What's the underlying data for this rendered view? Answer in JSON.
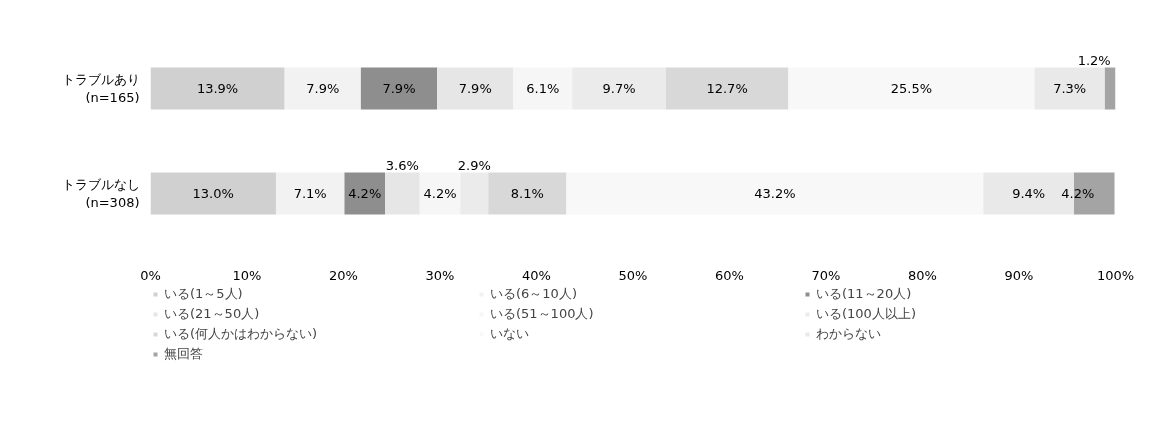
{
  "chart_data": {
    "type": "bar",
    "orientation": "horizontal",
    "stacked": true,
    "grid": false,
    "legend": "bottom",
    "categories": [
      "トラブルあり\n(n=165)",
      "トラブルなし\n(n=308)"
    ],
    "xlim": [
      0,
      100
    ],
    "xticks": [
      {
        "value": 0,
        "label": "0%"
      },
      {
        "value": 10,
        "label": "10%"
      },
      {
        "value": 20,
        "label": "20%"
      },
      {
        "value": 30,
        "label": "30%"
      },
      {
        "value": 40,
        "label": "40%"
      },
      {
        "value": 50,
        "label": "50%"
      },
      {
        "value": 60,
        "label": "60%"
      },
      {
        "value": 70,
        "label": "70%"
      },
      {
        "value": 80,
        "label": "80%"
      },
      {
        "value": 90,
        "label": "90%"
      },
      {
        "value": 100,
        "label": "100%"
      }
    ],
    "series": [
      {
        "name": "いる(1～5人)",
        "color": "#d0d0d0",
        "values": [
          13.9,
          13.0
        ],
        "value_labels": [
          "13.9%",
          "13.0%"
        ]
      },
      {
        "name": "いる(6～10人)",
        "color": "#f2f2f2",
        "values": [
          7.9,
          7.1
        ],
        "value_labels": [
          "7.9%",
          "7.1%"
        ]
      },
      {
        "name": "いる(11～20人)",
        "color": "#8e8e8e",
        "values": [
          7.9,
          4.2
        ],
        "value_labels": [
          "7.9%",
          "4.2%"
        ]
      },
      {
        "name": "いる(21～50人)",
        "color": "#e6e6e6",
        "values": [
          7.9,
          3.6
        ],
        "value_labels": [
          "7.9%",
          "3.6%"
        ]
      },
      {
        "name": "いる(51～100人)",
        "color": "#f6f6f6",
        "values": [
          6.1,
          4.2
        ],
        "value_labels": [
          "6.1%",
          "4.2%"
        ]
      },
      {
        "name": "いる(100人以上)",
        "color": "#ebebeb",
        "values": [
          9.7,
          2.9
        ],
        "value_labels": [
          "9.7%",
          "2.9%"
        ]
      },
      {
        "name": "いる(何人かはわからない)",
        "color": "#d8d8d8",
        "values": [
          12.7,
          8.1
        ],
        "value_labels": [
          "12.7%",
          "8.1%"
        ]
      },
      {
        "name": "いない",
        "color": "#f8f8f8",
        "values": [
          25.5,
          43.2
        ],
        "value_labels": [
          "25.5%",
          "43.2%"
        ]
      },
      {
        "name": "わからない",
        "color": "#e9e9e9",
        "values": [
          7.3,
          9.4
        ],
        "value_labels": [
          "7.3%",
          "9.4%"
        ]
      },
      {
        "name": "無回答",
        "color": "#a4a4a4",
        "values": [
          1.2,
          4.2
        ],
        "value_labels": [
          "1.2%",
          "4.2%"
        ]
      }
    ]
  }
}
